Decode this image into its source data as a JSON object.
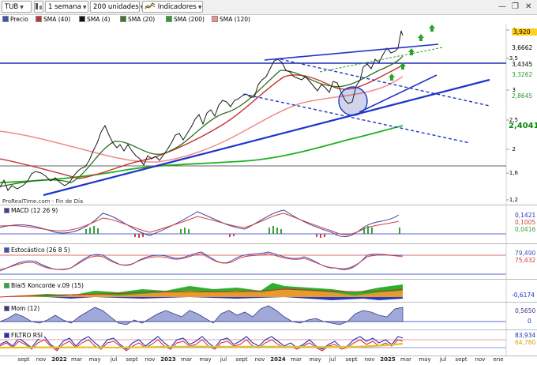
{
  "toolbar": {
    "ticker": "TUB",
    "period": "1 semana",
    "units": "200 unidades",
    "indicators": "Indicadores"
  },
  "legend": [
    {
      "label": "Precio",
      "color": "#2020a0"
    },
    {
      "label": "SMA (40)",
      "color": "#c83232"
    },
    {
      "label": "SMA (4)",
      "color": "#101010"
    },
    {
      "label": "SMA (20)",
      "color": "#3a7a2a"
    },
    {
      "label": "SMA (200)",
      "color": "#2aa02a"
    },
    {
      "label": "SMA (120)",
      "color": "#f09090"
    }
  ],
  "main": {
    "watermark": "ProRealTime.com - Fin de Día",
    "y_ticks": [
      "4",
      "3,5",
      "3",
      "2,5",
      "2",
      "1,6",
      "1,2"
    ],
    "tags": [
      {
        "value": "3,920",
        "bg": "#ffd020",
        "fg": "#000"
      },
      {
        "value": "3,6662",
        "bg": "#ffffff",
        "fg": "#000"
      },
      {
        "value": "3,4345",
        "bg": "#ffffff",
        "fg": "#000"
      },
      {
        "value": "3,3262",
        "bg": "#ffffff",
        "fg": "#2a9a2a"
      },
      {
        "value": "2,8645",
        "bg": "#ffffff",
        "fg": "#2a9a2a"
      },
      {
        "value": "2,4041",
        "bg": "#ffffff",
        "fg": "#0a8a0a"
      }
    ]
  },
  "panels": {
    "macd": {
      "title": "MACD (12 26 9)",
      "values": [
        "0,1421",
        "0,1005",
        "0,0416"
      ]
    },
    "stoch": {
      "title": "Estocástico (26 8 5)",
      "values": [
        "79,490",
        "75,432"
      ]
    },
    "blai5": {
      "title": "Blai5 Koncorde v.09 (15)",
      "values": [
        "-0,6174"
      ]
    },
    "mom": {
      "title": "Mom (12)",
      "values": [
        "0,5650",
        "0"
      ]
    },
    "rsi": {
      "title": "FILTRO RSI",
      "values": [
        "83,934",
        "64,780"
      ]
    }
  },
  "x_axis": [
    {
      "label": "sept",
      "year": false
    },
    {
      "label": "nov",
      "year": false
    },
    {
      "label": "2022",
      "year": true
    },
    {
      "label": "mar",
      "year": false
    },
    {
      "label": "may",
      "year": false
    },
    {
      "label": "jul",
      "year": false
    },
    {
      "label": "sept",
      "year": false
    },
    {
      "label": "nov",
      "year": false
    },
    {
      "label": "2023",
      "year": true
    },
    {
      "label": "mar",
      "year": false
    },
    {
      "label": "may",
      "year": false
    },
    {
      "label": "jul",
      "year": false
    },
    {
      "label": "sept",
      "year": false
    },
    {
      "label": "nov",
      "year": false
    },
    {
      "label": "2024",
      "year": true
    },
    {
      "label": "mar",
      "year": false
    },
    {
      "label": "may",
      "year": false
    },
    {
      "label": "jul",
      "year": false
    },
    {
      "label": "sept",
      "year": false
    },
    {
      "label": "nov",
      "year": false
    },
    {
      "label": "2025",
      "year": true
    },
    {
      "label": "mar",
      "year": false
    },
    {
      "label": "may",
      "year": false
    },
    {
      "label": "jul",
      "year": false
    },
    {
      "label": "sept",
      "year": false
    },
    {
      "label": "nov",
      "year": false
    },
    {
      "label": "ene",
      "year": false
    }
  ]
}
